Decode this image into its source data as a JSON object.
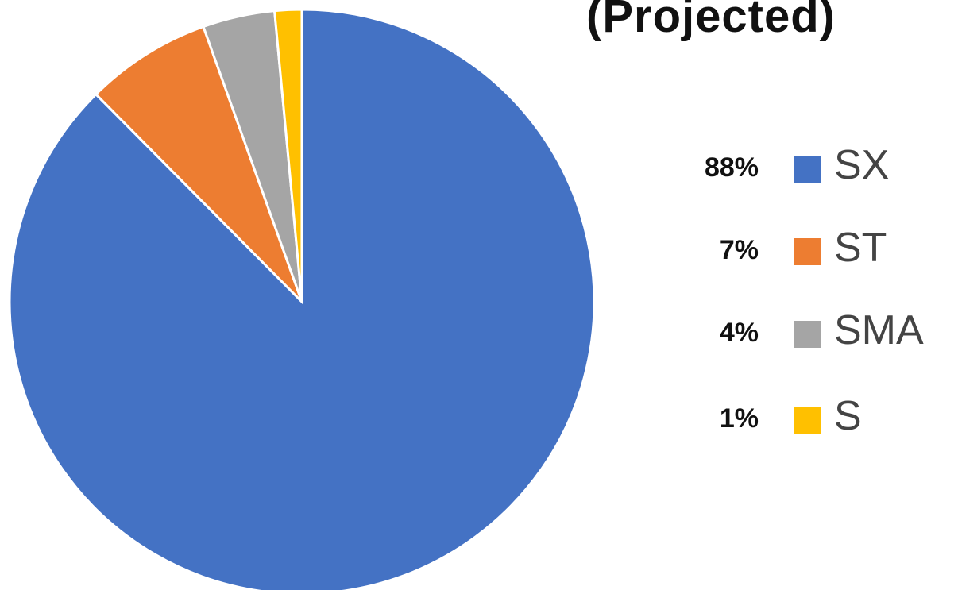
{
  "chart_data": {
    "type": "pie",
    "title": "(Projected)",
    "slices": [
      {
        "label": "SX",
        "percent_label": "88%",
        "value": 88,
        "color": "#4472C4"
      },
      {
        "label": "ST",
        "percent_label": "7%",
        "value": 7,
        "color": "#ED7D31"
      },
      {
        "label": "SMA",
        "percent_label": "4%",
        "value": 4,
        "color": "#A5A5A5"
      },
      {
        "label": "S",
        "percent_label": "1%",
        "value": 1.5,
        "color": "#FFC000"
      }
    ],
    "legend_position": "right"
  }
}
